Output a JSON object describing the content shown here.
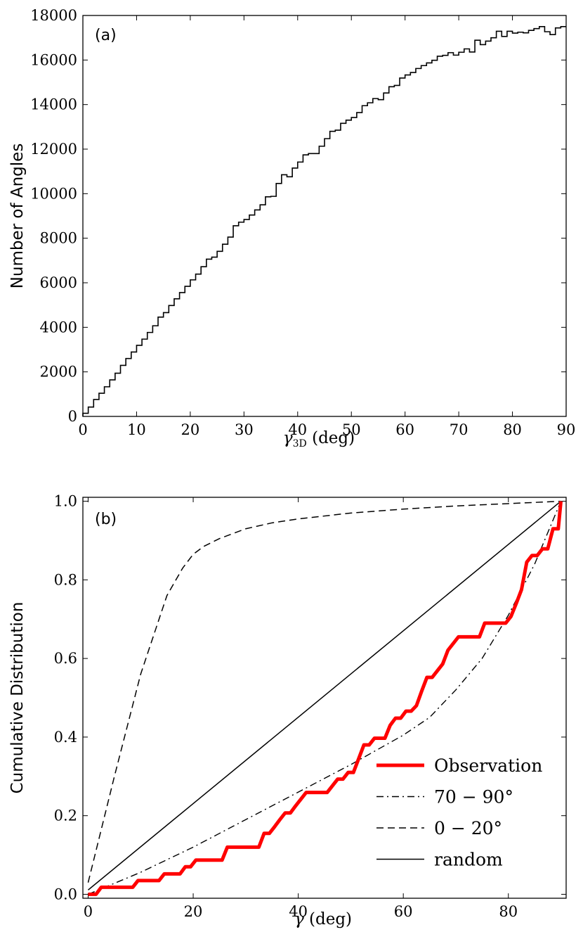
{
  "chart_data": [
    {
      "type": "histogram-step",
      "panel_label": "(a)",
      "xlabel": "γ3D (deg)",
      "xlabel_main": "γ",
      "xlabel_sub": "3D",
      "xlabel_unit": " (deg)",
      "ylabel": "Number of Angles",
      "xlim": [
        0,
        90
      ],
      "ylim": [
        0,
        18000
      ],
      "xticks": [
        0,
        10,
        20,
        30,
        40,
        50,
        60,
        70,
        80,
        90
      ],
      "yticks": [
        0,
        2000,
        4000,
        6000,
        8000,
        10000,
        12000,
        14000,
        16000,
        18000
      ],
      "bin_width": 1,
      "counts": [
        140,
        420,
        760,
        1040,
        1330,
        1640,
        1940,
        2290,
        2600,
        2890,
        3190,
        3470,
        3770,
        4070,
        4460,
        4660,
        4980,
        5280,
        5560,
        5840,
        6130,
        6390,
        6720,
        7060,
        7150,
        7410,
        7730,
        8050,
        8560,
        8720,
        8840,
        9040,
        9270,
        9500,
        9860,
        9880,
        10460,
        10850,
        10760,
        11150,
        11420,
        11740,
        11800,
        11800,
        12130,
        12470,
        12800,
        12850,
        13160,
        13300,
        13420,
        13640,
        13950,
        14080,
        14270,
        14220,
        14520,
        14800,
        14860,
        15190,
        15330,
        15440,
        15620,
        15750,
        15870,
        15990,
        16170,
        16210,
        16330,
        16220,
        16350,
        16500,
        16360,
        16890,
        16690,
        16850,
        17000,
        17290,
        17060,
        17290,
        17210,
        17250,
        17220,
        17330,
        17410,
        17500,
        17270,
        17140,
        17440,
        17500
      ]
    },
    {
      "type": "line",
      "panel_label": "(b)",
      "xlabel": "γ (deg)",
      "xlabel_main": "γ",
      "xlabel_unit": " (deg)",
      "ylabel": "Cumulative Distribution",
      "xlim": [
        -1,
        91
      ],
      "ylim": [
        -0.01,
        1.01
      ],
      "xticks": [
        0,
        20,
        40,
        60,
        80
      ],
      "yticks": [
        "0.0",
        "0.2",
        "0.4",
        "0.6",
        "0.8",
        "1.0"
      ],
      "legend_position": "lower-right",
      "series": [
        {
          "name": "Observation",
          "style": "solid-thick",
          "color": "#ff0000",
          "x": [
            0,
            1.5,
            2.5,
            3.5,
            8.5,
            9.5,
            13.5,
            14.5,
            17.5,
            18.5,
            19.5,
            20.5,
            25.5,
            26.5,
            32.5,
            33.5,
            34.5,
            35.5,
            36.5,
            37.5,
            38.5,
            39.5,
            40.5,
            41.5,
            45.5,
            46.5,
            47.5,
            48.5,
            49.5,
            50.5,
            51.5,
            52.5,
            53.5,
            54.5,
            55.5,
            56.5,
            57.5,
            58.5,
            59.5,
            60.5,
            61.5,
            62.5,
            63.5,
            64.5,
            65.5,
            66.5,
            67.5,
            68.5,
            69.5,
            70.5,
            74.5,
            75.5,
            78.5,
            79.5,
            80.5,
            81.5,
            82.5,
            83.5,
            84.5,
            85.5,
            86.5,
            87.5,
            88.5,
            89.5,
            90
          ],
          "y": [
            0.0,
            0.0,
            0.018,
            0.018,
            0.018,
            0.035,
            0.035,
            0.052,
            0.052,
            0.07,
            0.07,
            0.087,
            0.087,
            0.12,
            0.12,
            0.155,
            0.155,
            0.172,
            0.19,
            0.207,
            0.207,
            0.225,
            0.242,
            0.259,
            0.259,
            0.276,
            0.293,
            0.293,
            0.31,
            0.31,
            0.345,
            0.38,
            0.38,
            0.397,
            0.397,
            0.397,
            0.43,
            0.448,
            0.448,
            0.466,
            0.466,
            0.48,
            0.517,
            0.552,
            0.552,
            0.569,
            0.586,
            0.621,
            0.638,
            0.655,
            0.655,
            0.69,
            0.69,
            0.69,
            0.707,
            0.74,
            0.775,
            0.845,
            0.862,
            0.862,
            0.879,
            0.879,
            0.93,
            0.93,
            1.0
          ]
        },
        {
          "name": "70 − 90°",
          "style": "dashdot",
          "color": "#000000",
          "x": [
            0,
            10,
            20,
            30,
            40,
            50,
            60,
            65,
            70,
            75,
            80,
            85,
            90
          ],
          "y": [
            0.0,
            0.056,
            0.12,
            0.19,
            0.26,
            0.33,
            0.405,
            0.45,
            0.52,
            0.6,
            0.71,
            0.84,
            1.0
          ]
        },
        {
          "name": "0 − 20°",
          "style": "dashed",
          "color": "#000000",
          "x": [
            0,
            5,
            10,
            15,
            18,
            20,
            22,
            25,
            30,
            35,
            40,
            50,
            60,
            70,
            80,
            90
          ],
          "y": [
            0.03,
            0.3,
            0.56,
            0.76,
            0.83,
            0.865,
            0.885,
            0.905,
            0.93,
            0.945,
            0.955,
            0.97,
            0.98,
            0.988,
            0.994,
            1.0
          ]
        },
        {
          "name": "random",
          "style": "solid",
          "color": "#000000",
          "x": [
            0,
            90
          ],
          "y": [
            0.011,
            1.0
          ]
        }
      ]
    }
  ]
}
